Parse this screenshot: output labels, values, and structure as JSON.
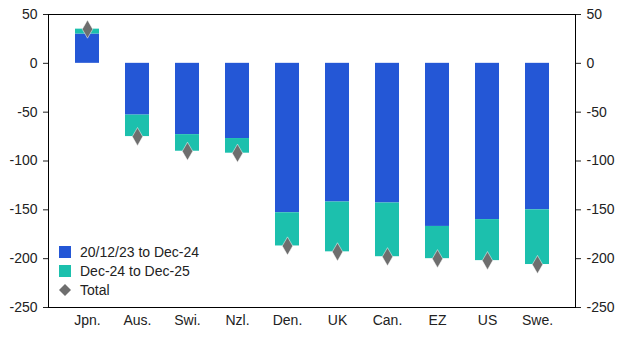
{
  "chart_data": {
    "type": "bar",
    "stacked": true,
    "categories": [
      "Jpn.",
      "Aus.",
      "Swi.",
      "Nzl.",
      "Den.",
      "UK",
      "Can.",
      "EZ",
      "US",
      "Swe."
    ],
    "series": [
      {
        "name": "20/12/23 to Dec-24",
        "color": "#2457d6",
        "values": [
          30,
          -53,
          -73,
          -77,
          -153,
          -142,
          -143,
          -167,
          -160,
          -150
        ]
      },
      {
        "name": "Dec-24 to Dec-25",
        "color": "#1cc0ad",
        "values": [
          5,
          -22,
          -17,
          -15,
          -34,
          -51,
          -55,
          -33,
          -42,
          -56
        ]
      },
      {
        "name": "Total",
        "type": "scatter",
        "marker": "diamond",
        "color": "#6e6e6e",
        "values": [
          35,
          -75,
          -90,
          -92,
          -187,
          -193,
          -198,
          -200,
          -202,
          -206
        ]
      }
    ],
    "ylim": [
      -250,
      50
    ],
    "yticks": [
      -250,
      -200,
      -150,
      -100,
      -50,
      0,
      50
    ],
    "legend": "bottom-left"
  }
}
